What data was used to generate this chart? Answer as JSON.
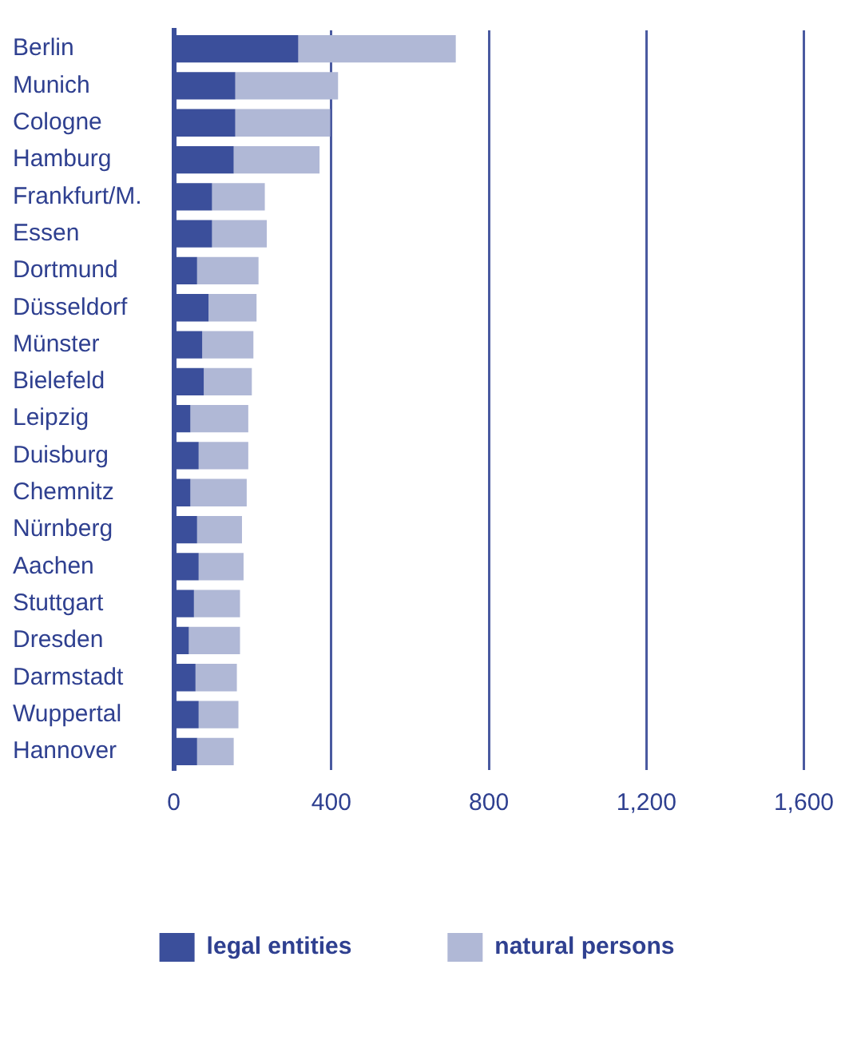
{
  "chart_data": {
    "type": "bar",
    "orientation": "horizontal",
    "stacked": true,
    "categories": [
      "Berlin",
      "Munich",
      "Cologne",
      "Hamburg",
      "Frankfurt/M.",
      "Essen",
      "Dortmund",
      "Düsseldorf",
      "Münster",
      "Bielefeld",
      "Leipzig",
      "Duisburg",
      "Chemnitz",
      "Nürnberg",
      "Aachen",
      "Stuttgart",
      "Dresden",
      "Darmstadt",
      "Wuppertal",
      "Hannover"
    ],
    "series": [
      {
        "name": "legal entities",
        "color": "#3b4f9b",
        "values": [
          316,
          156,
          156,
          152,
          97,
          97,
          59,
          88,
          72,
          76,
          42,
          63,
          42,
          59,
          63,
          51,
          38,
          55,
          63,
          59
        ]
      },
      {
        "name": "natural persons",
        "color": "#b0b8d6",
        "values": [
          400,
          261,
          241,
          218,
          134,
          139,
          156,
          122,
          130,
          122,
          147,
          126,
          143,
          114,
          114,
          117,
          130,
          105,
          101,
          93
        ]
      }
    ],
    "xlim": [
      0,
      1600
    ],
    "xticks": [
      0,
      400,
      800,
      {
        "value": 1200,
        "label": "1,200"
      },
      {
        "value": 1600,
        "label": "1,600"
      }
    ],
    "grid": "x",
    "legend": "bottom"
  }
}
